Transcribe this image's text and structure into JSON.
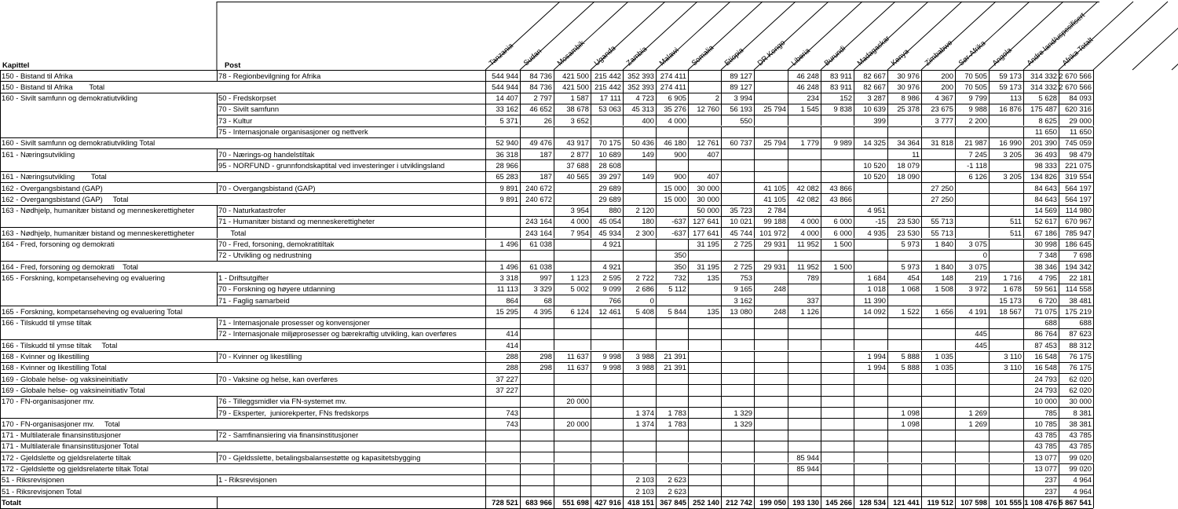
{
  "table": {
    "headers": {
      "kapittel": "Kapittel",
      "post": "Post",
      "columns": [
        "Tanzania",
        "Sudan",
        "Mosambik",
        "Uganda",
        "Zambia",
        "Malawi",
        "Somalia",
        "Etiopia",
        "DR Kongo",
        "Liberia",
        "Burundi",
        "Madagaskar",
        "Kenya",
        "Zimbabwe",
        "Sør-Afrika",
        "Angola",
        "Andre land/uspesifisert",
        "Afrika Totalt"
      ]
    },
    "rows": [
      [
        "150 - Bistand til Afrika",
        "78 - Regionbevilgning for Afrika",
        "544 944",
        "84 736",
        "421 500",
        "215 442",
        "352 393",
        "274 411",
        null,
        "89 127",
        null,
        "46 248",
        "83 911",
        "82 667",
        "30 976",
        "200",
        "70 505",
        "59 173",
        "314 332",
        "2 670 566"
      ],
      [
        "150 - Bistand til Afrika        Total",
        null,
        "544 944",
        "84 736",
        "421 500",
        "215 442",
        "352 393",
        "274 411",
        null,
        "89 127",
        null,
        "46 248",
        "83 911",
        "82 667",
        "30 976",
        "200",
        "70 505",
        "59 173",
        "314 332",
        "2 670 566"
      ],
      [
        "160 - Sivilt samfunn og demokratiutvikling",
        "50 - Fredskorpset",
        "14 407",
        "2 797",
        "1 587",
        "17 111",
        "4 723",
        "6 905",
        "2",
        "3 994",
        null,
        "234",
        "152",
        "3 287",
        "8 986",
        "4 367",
        "9 799",
        "113",
        "5 628",
        "84 093"
      ],
      [
        null,
        "70 - Sivilt samfunn",
        "33 162",
        "46 652",
        "38 678",
        "53 063",
        "45 313",
        "35 276",
        "12 760",
        "56 193",
        "25 794",
        "1 545",
        "9 838",
        "10 639",
        "25 378",
        "23 675",
        "9 988",
        "16 876",
        "175 487",
        "620 316"
      ],
      [
        null,
        "73 - Kultur",
        "5 371",
        "26",
        "3 652",
        null,
        "400",
        "4 000",
        null,
        "550",
        null,
        null,
        null,
        "399",
        null,
        "3 777",
        "2 200",
        null,
        "8 625",
        "29 000"
      ],
      [
        null,
        "75 - Internasjonale organisasjoner og nettverk",
        null,
        null,
        null,
        null,
        null,
        null,
        null,
        null,
        null,
        null,
        null,
        null,
        null,
        null,
        null,
        null,
        "11 650",
        "11 650"
      ],
      [
        "160 - Sivilt samfunn og demokratiutvikling Total",
        null,
        "52 940",
        "49 476",
        "43 917",
        "70 175",
        "50 436",
        "46 180",
        "12 761",
        "60 737",
        "25 794",
        "1 779",
        "9 989",
        "14 325",
        "34 364",
        "31 818",
        "21 987",
        "16 990",
        "201 390",
        "745 059"
      ],
      [
        "161 - Næringsutvikling",
        "70 - Nærings-og handelstiltak",
        "36 318",
        "187",
        "2 877",
        "10 689",
        "149",
        "900",
        "407",
        null,
        null,
        null,
        null,
        null,
        "11",
        null,
        "7 245",
        "3 205",
        "36 493",
        "98 479"
      ],
      [
        null,
        "95 - NORFUND - grunnfondskaptital ved investeringer i utviklingsland",
        "28 966",
        null,
        "37 688",
        "28 608",
        null,
        null,
        null,
        null,
        null,
        null,
        null,
        "10 520",
        "18 079",
        null,
        "-1 118",
        null,
        "98 333",
        "221 075"
      ],
      [
        "161 - Næringsutvikling        Total",
        null,
        "65 283",
        "187",
        "40 565",
        "39 297",
        "149",
        "900",
        "407",
        null,
        null,
        null,
        null,
        "10 520",
        "18 090",
        null,
        "6 126",
        "3 205",
        "134 826",
        "319 554"
      ],
      [
        "162 - Overgangsbistand (GAP)",
        "70 - Overgangsbistand (GAP)",
        "9 891",
        "240 672",
        null,
        "29 689",
        null,
        "15 000",
        "30 000",
        null,
        "41 105",
        "42 082",
        "43 866",
        null,
        null,
        "27 250",
        null,
        null,
        "84 643",
        "564 197"
      ],
      [
        "162 - Overgangsbistand (GAP)     Total",
        null,
        "9 891",
        "240 672",
        null,
        "29 689",
        null,
        "15 000",
        "30 000",
        null,
        "41 105",
        "42 082",
        "43 866",
        null,
        null,
        "27 250",
        null,
        null,
        "84 643",
        "564 197"
      ],
      [
        "163 - Nødhjelp, humanitær bistand og menneskerettigheter",
        "70 - Naturkatastrofer",
        null,
        null,
        "3 954",
        "880",
        "2 120",
        null,
        "50 000",
        "35 723",
        "2 784",
        null,
        null,
        "4 951",
        null,
        null,
        null,
        null,
        "14 569",
        "114 980"
      ],
      [
        null,
        "71 - Humanitær bistand og menneskerettigheter",
        null,
        "243 164",
        "4 000",
        "45 054",
        "180",
        "-637",
        "127 641",
        "10 021",
        "99 188",
        "4 000",
        "6 000",
        "-15",
        "23 530",
        "55 713",
        null,
        "511",
        "52 617",
        "670 967"
      ],
      [
        "163 - Nødhjelp, humanitær bistand og menneskerettigheter",
        "      Total",
        null,
        "243 164",
        "7 954",
        "45 934",
        "2 300",
        "-637",
        "177 641",
        "45 744",
        "101 972",
        "4 000",
        "6 000",
        "4 935",
        "23 530",
        "55 713",
        null,
        "511",
        "67 186",
        "785 947"
      ],
      [
        "164 - Fred, forsoning og demokrati",
        "70 - Fred, forsoning, demokratitiltak",
        "1 496",
        "61 038",
        null,
        "4 921",
        null,
        null,
        "31 195",
        "2 725",
        "29 931",
        "11 952",
        "1 500",
        null,
        "5 973",
        "1 840",
        "3 075",
        null,
        "30 998",
        "186 645"
      ],
      [
        null,
        "72 - Utvikling og nedrustning",
        null,
        null,
        null,
        null,
        null,
        "350",
        null,
        null,
        null,
        null,
        null,
        null,
        null,
        null,
        "0",
        null,
        "7 348",
        "7 698"
      ],
      [
        "164 - Fred, forsoning og demokrati    Total",
        null,
        "1 496",
        "61 038",
        null,
        "4 921",
        null,
        "350",
        "31 195",
        "2 725",
        "29 931",
        "11 952",
        "1 500",
        null,
        "5 973",
        "1 840",
        "3 075",
        null,
        "38 346",
        "194 342"
      ],
      [
        "165 - Forskning, kompetanseheving og evaluering",
        "1 - Driftsutgifter",
        "3 318",
        "997",
        "1 123",
        "2 595",
        "2 722",
        "732",
        "135",
        "753",
        null,
        "789",
        null,
        "1 684",
        "454",
        "148",
        "219",
        "1 716",
        "4 795",
        "22 181"
      ],
      [
        null,
        "70 - Forskning og høyere utdanning",
        "11 113",
        "3 329",
        "5 002",
        "9 099",
        "2 686",
        "5 112",
        null,
        "9 165",
        "248",
        null,
        null,
        "1 018",
        "1 068",
        "1 508",
        "3 972",
        "1 678",
        "59 561",
        "114 558"
      ],
      [
        null,
        "71 - Faglig samarbeid",
        "864",
        "68",
        null,
        "766",
        "0",
        null,
        null,
        "3 162",
        null,
        "337",
        null,
        "11 390",
        null,
        null,
        null,
        "15 173",
        "6 720",
        "38 481"
      ],
      [
        "165 - Forskning, kompetanseheving og evaluering Total",
        null,
        "15 295",
        "4 395",
        "6 124",
        "12 461",
        "5 408",
        "5 844",
        "135",
        "13 080",
        "248",
        "1 126",
        null,
        "14 092",
        "1 522",
        "1 656",
        "4 191",
        "18 567",
        "71 075",
        "175 219"
      ],
      [
        "166 - Tilskudd til ymse tiltak",
        "71 - Internasjonale prosesser og konvensjoner",
        null,
        null,
        null,
        null,
        null,
        null,
        null,
        null,
        null,
        null,
        null,
        null,
        null,
        null,
        null,
        null,
        "688",
        "688"
      ],
      [
        null,
        "72 - Internasjonale miljøprosesser og bærekraftig utvikling, kan overføres",
        "414",
        null,
        null,
        null,
        null,
        null,
        null,
        null,
        null,
        null,
        null,
        null,
        null,
        null,
        "445",
        null,
        "86 764",
        "87 623"
      ],
      [
        "166 - Tilskudd til ymse tiltak     Total",
        null,
        "414",
        null,
        null,
        null,
        null,
        null,
        null,
        null,
        null,
        null,
        null,
        null,
        null,
        null,
        "445",
        null,
        "87 453",
        "88 312"
      ],
      [
        "168 - Kvinner og likestilling",
        "70 - Kvinner og likestilling",
        "288",
        "298",
        "11 637",
        "9 998",
        "3 988",
        "21 391",
        null,
        null,
        null,
        null,
        null,
        "1 994",
        "5 888",
        "1 035",
        null,
        "3 110",
        "16 548",
        "76 175"
      ],
      [
        "168 - Kvinner og likestilling Total",
        null,
        "288",
        "298",
        "11 637",
        "9 998",
        "3 988",
        "21 391",
        null,
        null,
        null,
        null,
        null,
        "1 994",
        "5 888",
        "1 035",
        null,
        "3 110",
        "16 548",
        "76 175"
      ],
      [
        "169 - Globale helse- og vaksineinitiativ",
        "70 - Vaksine og helse, kan overføres",
        "37 227",
        null,
        null,
        null,
        null,
        null,
        null,
        null,
        null,
        null,
        null,
        null,
        null,
        null,
        null,
        null,
        "24 793",
        "62 020"
      ],
      [
        "169 - Globale helse- og vaksineinitiativ Total",
        null,
        "37 227",
        null,
        null,
        null,
        null,
        null,
        null,
        null,
        null,
        null,
        null,
        null,
        null,
        null,
        null,
        null,
        "24 793",
        "62 020"
      ],
      [
        "170 - FN-organisasjoner mv.",
        "76 - Tilleggsmidler via FN-systemet mv.",
        null,
        null,
        "20 000",
        null,
        null,
        null,
        null,
        null,
        null,
        null,
        null,
        null,
        null,
        null,
        null,
        null,
        "10 000",
        "30 000"
      ],
      [
        null,
        "79 - Eksperter,  juniorekperter, FNs fredskorps",
        "743",
        null,
        null,
        null,
        "1 374",
        "1 783",
        null,
        "1 329",
        null,
        null,
        null,
        null,
        "1 098",
        null,
        "1 269",
        null,
        "785",
        "8 381"
      ],
      [
        "170 - FN-organisasjoner mv.     Total",
        null,
        "743",
        null,
        "20 000",
        null,
        "1 374",
        "1 783",
        null,
        "1 329",
        null,
        null,
        null,
        null,
        "1 098",
        null,
        "1 269",
        null,
        "10 785",
        "38 381"
      ],
      [
        "171 - Multilaterale finansinstitusjoner",
        "72 - Samfinansiering via finansinstitusjoner",
        null,
        null,
        null,
        null,
        null,
        null,
        null,
        null,
        null,
        null,
        null,
        null,
        null,
        null,
        null,
        null,
        "43 785",
        "43 785"
      ],
      [
        "171 - Multilaterale finansinstitusjoner Total",
        null,
        null,
        null,
        null,
        null,
        null,
        null,
        null,
        null,
        null,
        null,
        null,
        null,
        null,
        null,
        null,
        null,
        "43 785",
        "43 785"
      ],
      [
        "172 - Gjeldslette og gjeldsrelaterte tiltak",
        "70 - Gjeldsslette, betalingsbalansestøtte og kapasitetsbygging",
        null,
        null,
        null,
        null,
        null,
        null,
        null,
        null,
        null,
        "85 944",
        null,
        null,
        null,
        null,
        null,
        null,
        "13 077",
        "99 020"
      ],
      [
        "172 - Gjeldslette og gjeldsrelaterte tiltak Total",
        null,
        null,
        null,
        null,
        null,
        null,
        null,
        null,
        null,
        null,
        "85 944",
        null,
        null,
        null,
        null,
        null,
        null,
        "13 077",
        "99 020"
      ],
      [
        "51 - Riksrevisjonen",
        "1 - Riksrevisjonen",
        null,
        null,
        null,
        null,
        "2 103",
        "2 623",
        null,
        null,
        null,
        null,
        null,
        null,
        null,
        null,
        null,
        null,
        "237",
        "4 964"
      ],
      [
        "51 - Riksrevisjonen Total",
        null,
        null,
        null,
        null,
        null,
        "2 103",
        "2 623",
        null,
        null,
        null,
        null,
        null,
        null,
        null,
        null,
        null,
        null,
        "237",
        "4 964"
      ],
      [
        "Totalt",
        null,
        "728 521",
        "683 966",
        "551 698",
        "427 916",
        "418 151",
        "367 845",
        "252 140",
        "212 742",
        "199 050",
        "193 130",
        "145 266",
        "128 534",
        "121 441",
        "119 512",
        "107 598",
        "101 555",
        "1 108 476",
        "5 867 541"
      ]
    ]
  }
}
